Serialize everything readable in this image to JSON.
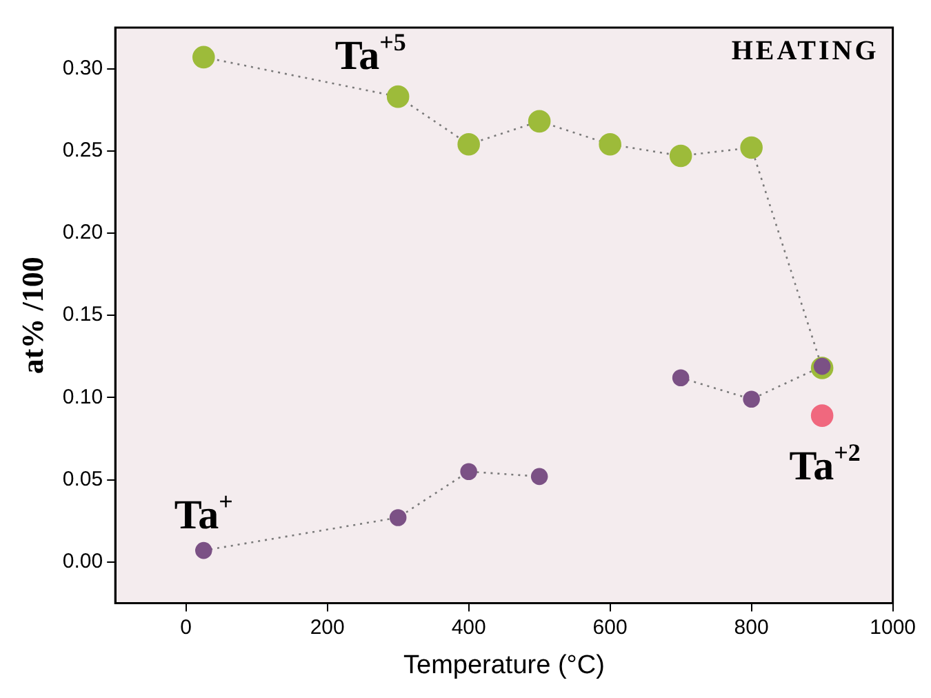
{
  "chart_data": {
    "type": "line",
    "xlabel": "Temperature (°C)",
    "ylabel": "at% /100",
    "annotations": [
      "HEATING"
    ],
    "x": [
      25,
      300,
      400,
      500,
      600,
      700,
      800,
      900
    ],
    "series": [
      {
        "name": "Ta$^{+5}$",
        "color": "#9dbb3a",
        "values": [
          0.307,
          0.283,
          0.254,
          0.268,
          0.254,
          0.247,
          0.252,
          0.118
        ]
      },
      {
        "name": "Ta$^{+}$",
        "color": "#7b5185",
        "values": [
          0.007,
          0.027,
          0.055,
          0.052,
          null,
          0.112,
          0.099,
          0.119
        ]
      },
      {
        "name": "Ta$^{+2}$",
        "type": "scatter",
        "color": "#f0687e",
        "x": [
          900
        ],
        "values": [
          0.089
        ]
      }
    ],
    "xlim": [
      -100,
      1000
    ],
    "xticks": [
      0,
      200,
      400,
      600,
      800,
      1000
    ],
    "ylim": [
      -0.025,
      0.325
    ],
    "yticks": [
      {
        "value": 0,
        "label": "0.00"
      },
      {
        "value": 0.05,
        "label": "0.05"
      },
      {
        "value": 0.1,
        "label": "0.10"
      },
      {
        "value": 0.15,
        "label": "0.15"
      },
      {
        "value": 0.2,
        "label": "0.20"
      },
      {
        "value": 0.25,
        "label": "0.25"
      },
      {
        "value": 0.3,
        "label": "0.30"
      }
    ],
    "grid": false,
    "legend": false,
    "marker": "circle",
    "line_style": "dotted"
  }
}
